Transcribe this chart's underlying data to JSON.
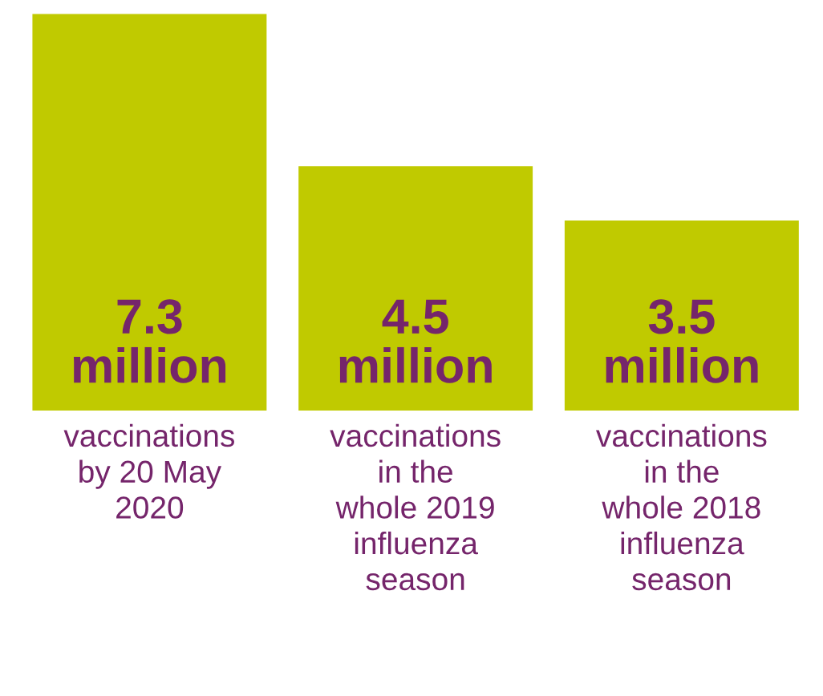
{
  "chart_data": {
    "type": "bar",
    "categories": [
      "vaccinations\nby 20 May\n2020",
      "vaccinations\nin the\nwhole 2019\ninfluenza\nseason",
      "vaccinations\nin the\nwhole 2018\ninfluenza\nseason"
    ],
    "values": [
      7300000,
      4500000,
      3500000
    ],
    "color": "#c0ca00",
    "value_labels": [
      "7.3\nmillion",
      "4.5\nmillion",
      "3.5\nmillion"
    ]
  }
}
